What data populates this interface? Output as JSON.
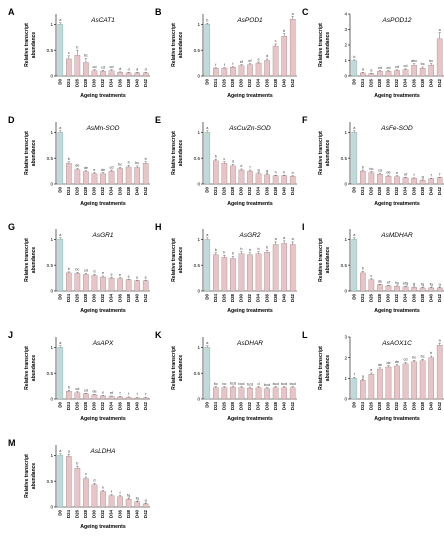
{
  "figure": {
    "x_axis_label": "Ageing treatments",
    "y_axis_label_line1": "Relative transcript",
    "y_axis_label_line2": "abundance"
  },
  "colors": {
    "control_bar": "#bfdad8",
    "treatment_bar": "#e8c4c6",
    "bar_edge": "#9a7f82",
    "control_edge": "#7fa4a0"
  },
  "chart_data": [
    {
      "type": "bar",
      "panel": "A",
      "title": "AsCAT1",
      "categories": [
        "D0",
        "D24",
        "D26",
        "D28",
        "D30",
        "D32",
        "D34",
        "D36",
        "D38",
        "D40",
        "D42"
      ],
      "values": [
        1.0,
        0.33,
        0.4,
        0.26,
        0.1,
        0.09,
        0.1,
        0.07,
        0.06,
        0.06,
        0.06
      ],
      "errors": [
        0.03,
        0.06,
        0.1,
        0.08,
        0.02,
        0.02,
        0.02,
        0.01,
        0.01,
        0.01,
        0.01
      ],
      "letters": [
        "a",
        "c",
        "b",
        "bc",
        "cd",
        "cd",
        "cd",
        "d",
        "d",
        "d",
        "d"
      ],
      "ylim": [
        0,
        1.2
      ],
      "yticks": [
        0,
        0.5,
        1.0
      ]
    },
    {
      "type": "bar",
      "panel": "B",
      "title": "AsPOD1",
      "categories": [
        "D0",
        "D24",
        "D26",
        "D28",
        "D30",
        "D32",
        "D34",
        "D36",
        "D38",
        "D40",
        "D42"
      ],
      "values": [
        1.0,
        0.15,
        0.15,
        0.17,
        0.2,
        0.22,
        0.25,
        0.3,
        0.58,
        0.77,
        1.1
      ],
      "errors": [
        0.02,
        0.01,
        0.01,
        0.01,
        0.02,
        0.02,
        0.02,
        0.03,
        0.04,
        0.05,
        0.05
      ],
      "letters": [
        "b",
        "f",
        "f",
        "f",
        "ef",
        "ef",
        "e",
        "d",
        "c",
        "b",
        "a"
      ],
      "ylim": [
        0,
        1.2
      ],
      "yticks": [
        0,
        0.5,
        1.0
      ]
    },
    {
      "type": "bar",
      "panel": "C",
      "title": "AsPOD12",
      "categories": [
        "D0",
        "D24",
        "D26",
        "D28",
        "D30",
        "D32",
        "D34",
        "D36",
        "D38",
        "D40",
        "D42"
      ],
      "values": [
        1.0,
        0.2,
        0.15,
        0.3,
        0.3,
        0.35,
        0.4,
        0.7,
        0.5,
        0.7,
        2.4
      ],
      "errors": [
        0.04,
        0.03,
        0.03,
        0.05,
        0.05,
        0.05,
        0.06,
        0.1,
        0.08,
        0.1,
        0.4
      ],
      "letters": [
        "b",
        "d",
        "d",
        "cd",
        "cd",
        "cd",
        "cd",
        "abc",
        "bc",
        "bc",
        "a"
      ],
      "ylim": [
        0,
        4
      ],
      "yticks": [
        0,
        1,
        2,
        3,
        4
      ]
    },
    {
      "type": "bar",
      "panel": "D",
      "title": "AsMn-SOD",
      "categories": [
        "D0",
        "D24",
        "D26",
        "D28",
        "D30",
        "D32",
        "D34",
        "D36",
        "D38",
        "D40",
        "D42"
      ],
      "values": [
        1.0,
        0.4,
        0.28,
        0.24,
        0.2,
        0.2,
        0.25,
        0.3,
        0.33,
        0.32,
        0.4
      ],
      "errors": [
        0.03,
        0.03,
        0.02,
        0.02,
        0.02,
        0.02,
        0.02,
        0.02,
        0.03,
        0.03,
        0.03
      ],
      "letters": [
        "a",
        "b",
        "de",
        "de",
        "e",
        "de",
        "cd",
        "bc",
        "b",
        "bc",
        "b"
      ],
      "ylim": [
        0,
        1.2
      ],
      "yticks": [
        0,
        0.5,
        1.0
      ]
    },
    {
      "type": "bar",
      "panel": "E",
      "title": "AsCu/Zn-SOD",
      "categories": [
        "D0",
        "D24",
        "D26",
        "D28",
        "D30",
        "D32",
        "D34",
        "D36",
        "D38",
        "D40",
        "D42"
      ],
      "values": [
        1.0,
        0.45,
        0.4,
        0.35,
        0.27,
        0.25,
        0.2,
        0.18,
        0.16,
        0.16,
        0.15
      ],
      "errors": [
        0.03,
        0.03,
        0.03,
        0.03,
        0.02,
        0.02,
        0.02,
        0.02,
        0.01,
        0.01,
        0.01
      ],
      "letters": [
        "a",
        "b",
        "c",
        "d",
        "e",
        "f",
        "g",
        "g",
        "h",
        "h",
        "h"
      ],
      "ylim": [
        0,
        1.2
      ],
      "yticks": [
        0,
        0.5,
        1.0
      ]
    },
    {
      "type": "bar",
      "panel": "F",
      "title": "AsFe-SOD",
      "categories": [
        "D0",
        "D24",
        "D26",
        "D28",
        "D30",
        "D32",
        "D34",
        "D36",
        "D38",
        "D40",
        "D42"
      ],
      "values": [
        1.0,
        0.25,
        0.22,
        0.19,
        0.15,
        0.14,
        0.12,
        0.11,
        0.07,
        0.1,
        0.12
      ],
      "errors": [
        0.03,
        0.02,
        0.02,
        0.02,
        0.02,
        0.02,
        0.01,
        0.01,
        0.01,
        0.01,
        0.01
      ],
      "letters": [
        "a",
        "b",
        "bc",
        "cd",
        "de",
        "e",
        "ef",
        "f",
        "g",
        "f",
        "f"
      ],
      "ylim": [
        0,
        1.2
      ],
      "yticks": [
        0,
        0.5,
        1.0
      ]
    },
    {
      "type": "bar",
      "panel": "G",
      "title": "AsGR1",
      "categories": [
        "D0",
        "D24",
        "D26",
        "D28",
        "D30",
        "D32",
        "D34",
        "D36",
        "D38",
        "D40",
        "D42"
      ],
      "values": [
        1.0,
        0.35,
        0.34,
        0.32,
        0.3,
        0.27,
        0.25,
        0.24,
        0.22,
        0.2,
        0.2
      ],
      "errors": [
        0.03,
        0.02,
        0.02,
        0.02,
        0.02,
        0.02,
        0.02,
        0.02,
        0.01,
        0.01,
        0.01
      ],
      "letters": [
        "a",
        "b",
        "bc",
        "cd",
        "d",
        "e",
        "e",
        "e",
        "e",
        "e",
        "e"
      ],
      "ylim": [
        0,
        1.2
      ],
      "yticks": [
        0,
        0.5,
        1.0
      ]
    },
    {
      "type": "bar",
      "panel": "H",
      "title": "AsGR2",
      "categories": [
        "D0",
        "D24",
        "D26",
        "D28",
        "D30",
        "D32",
        "D34",
        "D36",
        "D38",
        "D40",
        "D42"
      ],
      "values": [
        1.0,
        0.7,
        0.65,
        0.63,
        0.72,
        0.7,
        0.72,
        0.75,
        0.9,
        0.92,
        0.9
      ],
      "errors": [
        0.03,
        0.04,
        0.04,
        0.04,
        0.04,
        0.04,
        0.04,
        0.04,
        0.05,
        0.05,
        0.05
      ],
      "letters": [
        "a",
        "b",
        "b",
        "b",
        "b",
        "b",
        "b",
        "b",
        "a",
        "a",
        "a"
      ],
      "ylim": [
        0,
        1.2
      ],
      "yticks": [
        0,
        0.5,
        1.0
      ]
    },
    {
      "type": "bar",
      "panel": "I",
      "title": "AsMDHAR",
      "categories": [
        "D0",
        "D24",
        "D26",
        "D28",
        "D30",
        "D32",
        "D34",
        "D36",
        "D38",
        "D40",
        "D42"
      ],
      "values": [
        1.0,
        0.35,
        0.22,
        0.12,
        0.1,
        0.09,
        0.08,
        0.07,
        0.06,
        0.06,
        0.06
      ],
      "errors": [
        0.03,
        0.03,
        0.02,
        0.01,
        0.01,
        0.01,
        0.01,
        0.01,
        0.01,
        0.01,
        0.01
      ],
      "letters": [
        "a",
        "b",
        "c",
        "de",
        "ef",
        "fg",
        "efg",
        "g",
        "fg",
        "fg",
        "g"
      ],
      "ylim": [
        0,
        1.2
      ],
      "yticks": [
        0,
        0.5,
        1.0
      ]
    },
    {
      "type": "bar",
      "panel": "J",
      "title": "AsAPX",
      "categories": [
        "D0",
        "D24",
        "D26",
        "D28",
        "D30",
        "D32",
        "D34",
        "D36",
        "D38",
        "D40",
        "D42"
      ],
      "values": [
        1.0,
        0.15,
        0.12,
        0.1,
        0.08,
        0.06,
        0.05,
        0.04,
        0.03,
        0.02,
        0.02
      ],
      "errors": [
        0.03,
        0.02,
        0.02,
        0.01,
        0.01,
        0.01,
        0.01,
        0.01,
        0.01,
        0.01,
        0.01
      ],
      "letters": [
        "a",
        "b",
        "cd",
        "cd",
        "de",
        "e",
        "ef",
        "f",
        "f",
        "f",
        "f"
      ],
      "ylim": [
        0,
        1.2
      ],
      "yticks": [
        0,
        0.5,
        1.0
      ]
    },
    {
      "type": "bar",
      "panel": "K",
      "title": "AsDHAR",
      "categories": [
        "D0",
        "D24",
        "D26",
        "D28",
        "D30",
        "D32",
        "D34",
        "D36",
        "D38",
        "D40",
        "D42"
      ],
      "values": [
        1.0,
        0.22,
        0.22,
        0.23,
        0.22,
        0.21,
        0.22,
        0.2,
        0.22,
        0.22,
        0.22
      ],
      "errors": [
        0.03,
        0.02,
        0.02,
        0.02,
        0.02,
        0.02,
        0.02,
        0.02,
        0.02,
        0.02,
        0.02
      ],
      "letters": [
        "a",
        "bc",
        "bc",
        "bcd",
        "bcd",
        "bcd",
        "d",
        "bcd",
        "bcd",
        "bcd",
        "bcd"
      ],
      "ylim": [
        0,
        1.2
      ],
      "yticks": [
        0,
        0.5,
        1.0
      ]
    },
    {
      "type": "bar",
      "panel": "L",
      "title": "AsAOX1C",
      "categories": [
        "D0",
        "D24",
        "D26",
        "D28",
        "D30",
        "D32",
        "D34",
        "D36",
        "D38",
        "D40",
        "D42"
      ],
      "values": [
        1.0,
        0.9,
        1.2,
        1.45,
        1.55,
        1.6,
        1.7,
        1.8,
        1.85,
        2.0,
        2.6
      ],
      "errors": [
        0.05,
        0.05,
        0.06,
        0.06,
        0.06,
        0.06,
        0.07,
        0.07,
        0.07,
        0.08,
        0.1
      ],
      "letters": [
        "f",
        "g",
        "e",
        "de",
        "de",
        "de",
        "cd",
        "bc",
        "bc",
        "b",
        "a"
      ],
      "ylim": [
        0,
        3
      ],
      "yticks": [
        0,
        1,
        2,
        3
      ]
    },
    {
      "type": "bar",
      "panel": "M",
      "title": "AsLDHA",
      "categories": [
        "D0",
        "D24",
        "D26",
        "D28",
        "D30",
        "D32",
        "D34",
        "D36",
        "D38",
        "D40",
        "D42"
      ],
      "values": [
        1.0,
        0.98,
        0.75,
        0.55,
        0.43,
        0.3,
        0.22,
        0.2,
        0.15,
        0.1,
        0.06
      ],
      "errors": [
        0.03,
        0.04,
        0.04,
        0.03,
        0.03,
        0.02,
        0.02,
        0.02,
        0.02,
        0.01,
        0.01
      ],
      "letters": [
        "a",
        "a",
        "b",
        "c",
        "d",
        "e",
        "f",
        "f",
        "fg",
        "fg",
        "g"
      ],
      "ylim": [
        0,
        1.2
      ],
      "yticks": [
        0,
        0.5,
        1.0
      ]
    }
  ]
}
